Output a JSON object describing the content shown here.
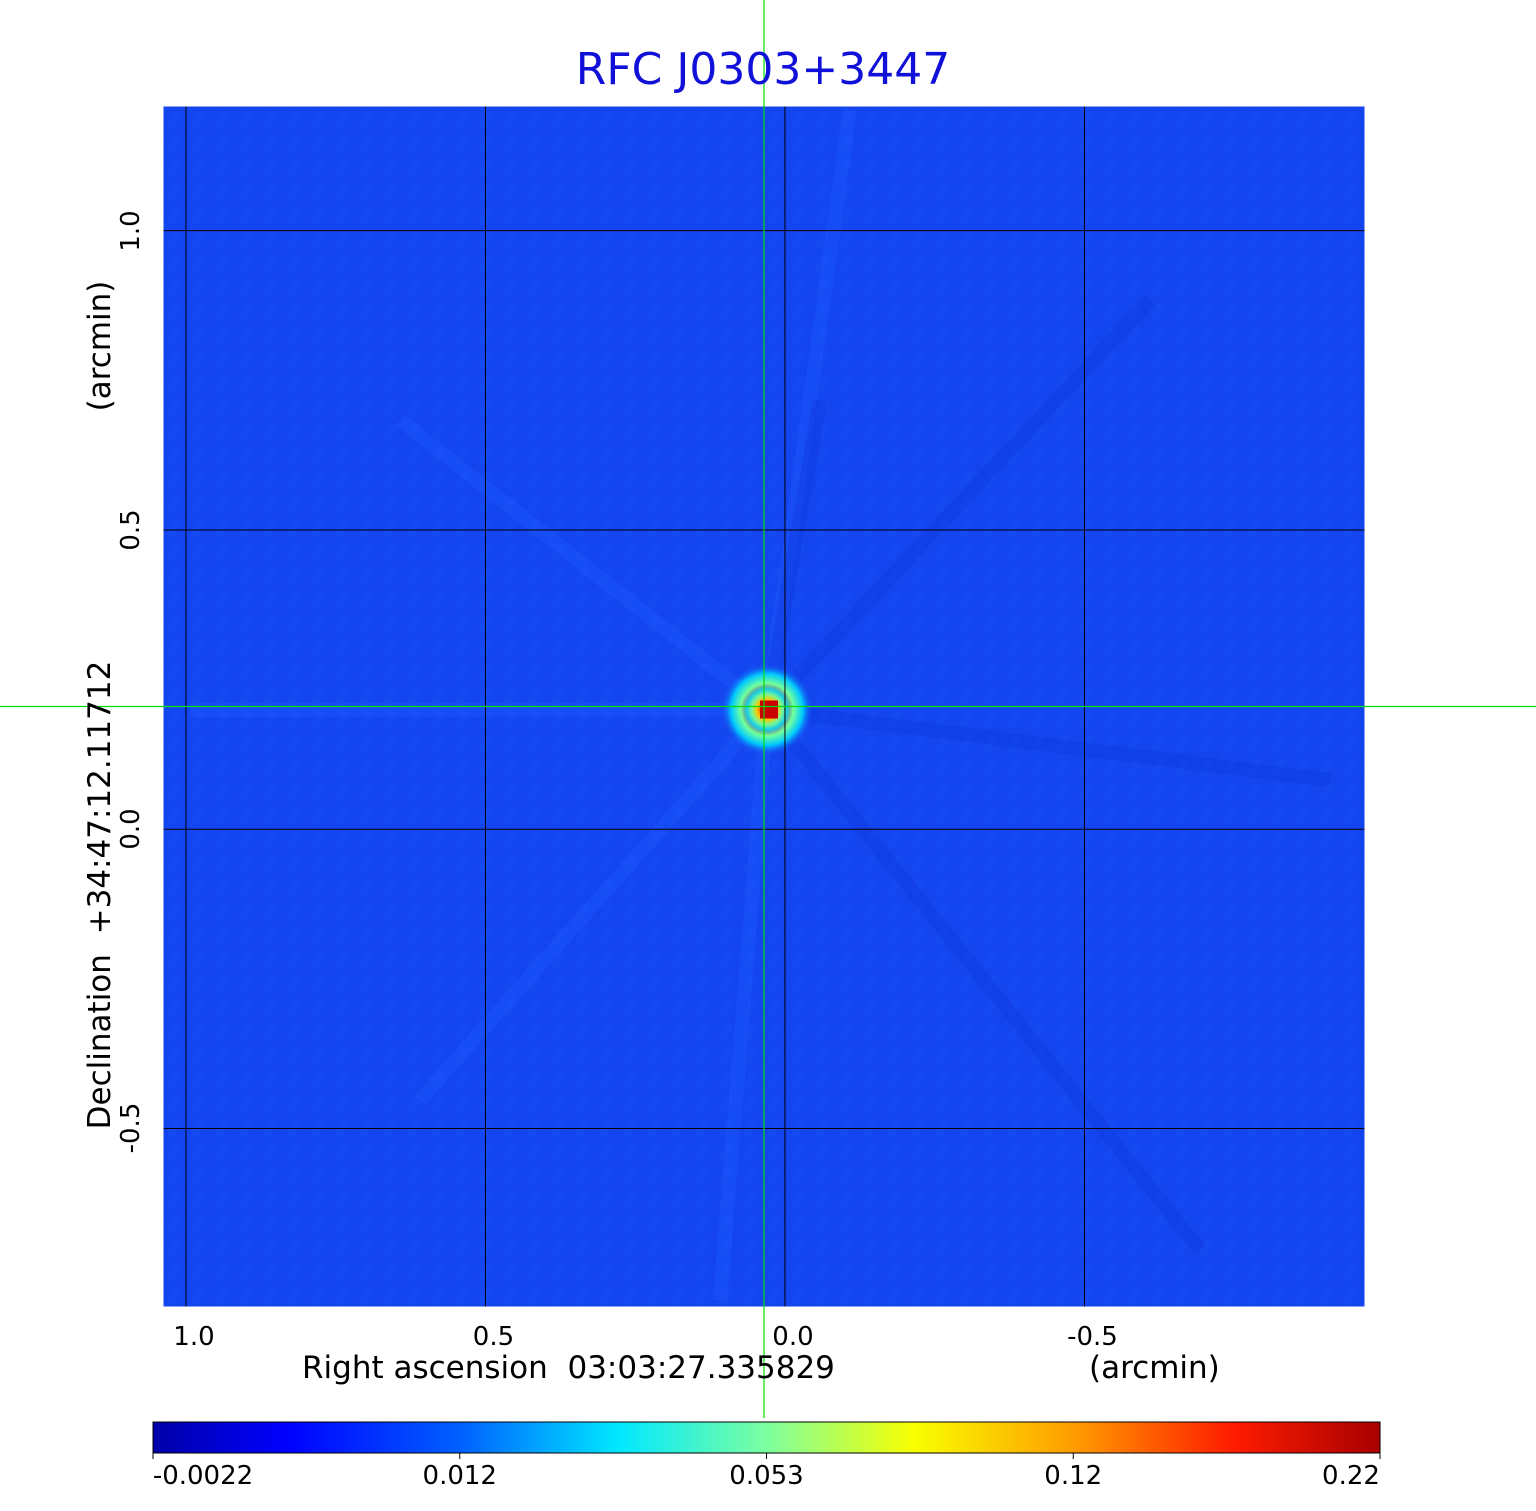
{
  "chart_data": {
    "type": "heatmap",
    "title": "RFC J0303+3447",
    "xlabel": "Right ascension  03:03:27.335829",
    "xlabel_unit": "(arcmin)",
    "ylabel": "Declination  +34:47:12.11712",
    "ylabel_unit": "(arcmin)",
    "x_range_arcmin": [
      1.04,
      -0.97
    ],
    "y_range_arcmin": [
      -0.8,
      1.21
    ],
    "x_ticks": [
      1.0,
      0.5,
      0.0,
      -0.5
    ],
    "x_tick_labels": [
      "1.0",
      "0.5",
      "0.0",
      "-0.5"
    ],
    "y_ticks": [
      1.0,
      0.5,
      0.0,
      -0.5
    ],
    "y_tick_labels": [
      "1.0",
      "0.5",
      "0.0",
      "-0.5"
    ],
    "grid": true,
    "peak": {
      "x_arcmin": 0.03,
      "y_arcmin": 0.2,
      "value": 0.22
    },
    "crosshair": {
      "x_arcmin": 0.035,
      "y_arcmin": 0.205,
      "color": "#00e000"
    },
    "colorbar": {
      "placement": "bottom",
      "colormap": "jet",
      "min": -0.0022,
      "max": 0.22,
      "tick_labels": [
        "-0.0022",
        "0.012",
        "0.053",
        "0.12",
        "0.22"
      ]
    },
    "background_value_color": "#1446f0"
  }
}
